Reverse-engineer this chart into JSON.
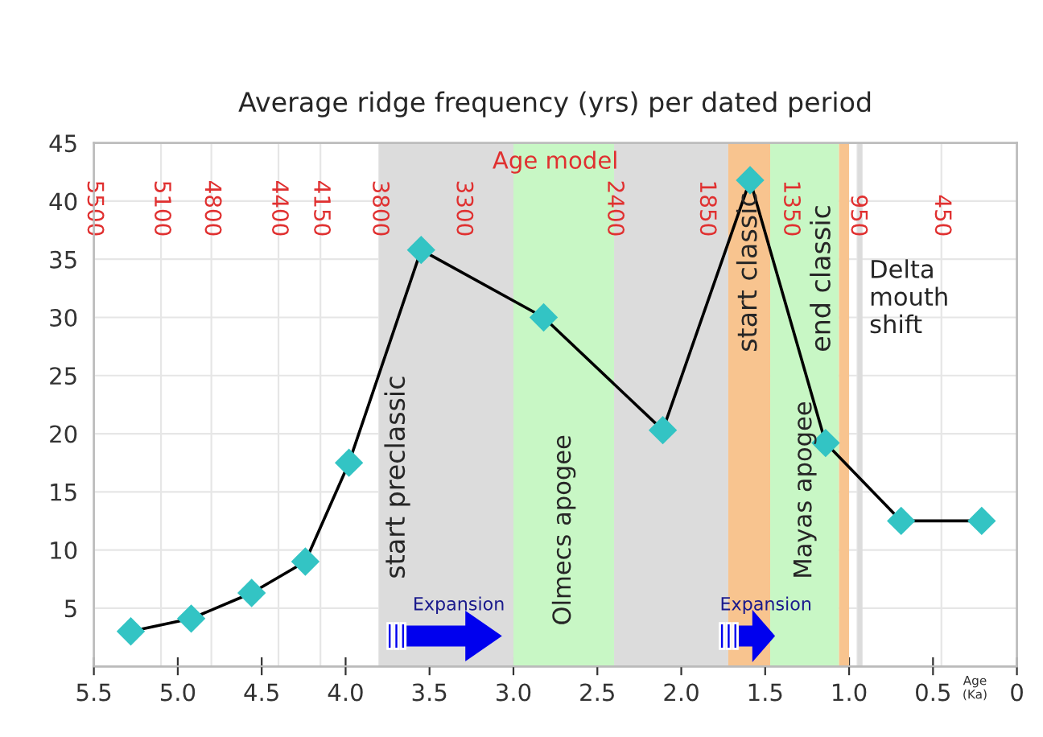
{
  "chart_data": {
    "type": "line",
    "title": "Average ridge frequency (yrs) per dated period",
    "xlabel": "Age (Ka)",
    "x2label": "Age model",
    "x": [
      5.28,
      4.92,
      4.56,
      4.24,
      3.98,
      3.55,
      2.82,
      2.11,
      1.59,
      1.14,
      0.69,
      0.21
    ],
    "series": [
      {
        "color": "#33c4c4",
        "values": [
          3.0,
          4.1,
          6.3,
          9.0,
          17.5,
          35.8,
          30.0,
          20.3,
          41.8,
          19.2,
          12.5,
          12.5
        ]
      }
    ],
    "marker": "diamond",
    "line_style": "solid",
    "grid": true,
    "xlim": [
      5.5,
      0
    ],
    "xticks": [
      5.5,
      {
        "value": 5,
        "label": "5.0"
      },
      4.5,
      {
        "value": 4,
        "label": "4.0"
      },
      3.5,
      {
        "value": 3,
        "label": "3.0"
      },
      2.5,
      {
        "value": 2,
        "label": "2.0"
      },
      1.5,
      {
        "value": 1,
        "label": "1.0"
      },
      0.5,
      0
    ],
    "ylim": [
      0,
      45
    ],
    "yticks": [
      5,
      10,
      15,
      20,
      25,
      30,
      35,
      40,
      45
    ],
    "x2lim": [
      5500,
      0
    ],
    "x2ticks": [
      5500,
      5100,
      4800,
      4400,
      4150,
      3800,
      3300,
      2400,
      1850,
      1350,
      950,
      450
    ],
    "bands": [
      {
        "axis": "x",
        "from": 3.8,
        "to": 3.0,
        "label": "start preclassic",
        "color": "#dcdcdc"
      },
      {
        "axis": "x",
        "from": 3.0,
        "to": 2.4,
        "label": "Olmecs apogee",
        "color": "#c8f7c5"
      },
      {
        "axis": "x",
        "from": 2.4,
        "to": 1.72,
        "color": "#dcdcdc"
      },
      {
        "axis": "x",
        "from": 1.72,
        "to": 1.47,
        "label": "start classic",
        "color": "#f8c48f"
      },
      {
        "axis": "x",
        "from": 1.47,
        "to": 1.06,
        "label": "Mayas apogee",
        "color": "#c8f7c5"
      },
      {
        "axis": "x",
        "from": 1.06,
        "to": 1.0,
        "label": "end classic",
        "color": "#f8c48f"
      },
      {
        "axis": "x",
        "from": 0.95,
        "to": 0.92,
        "label": "Delta mouth shift",
        "color": "#dcdcdc"
      }
    ],
    "annotations": [
      "Expansion",
      "Expansion"
    ]
  }
}
